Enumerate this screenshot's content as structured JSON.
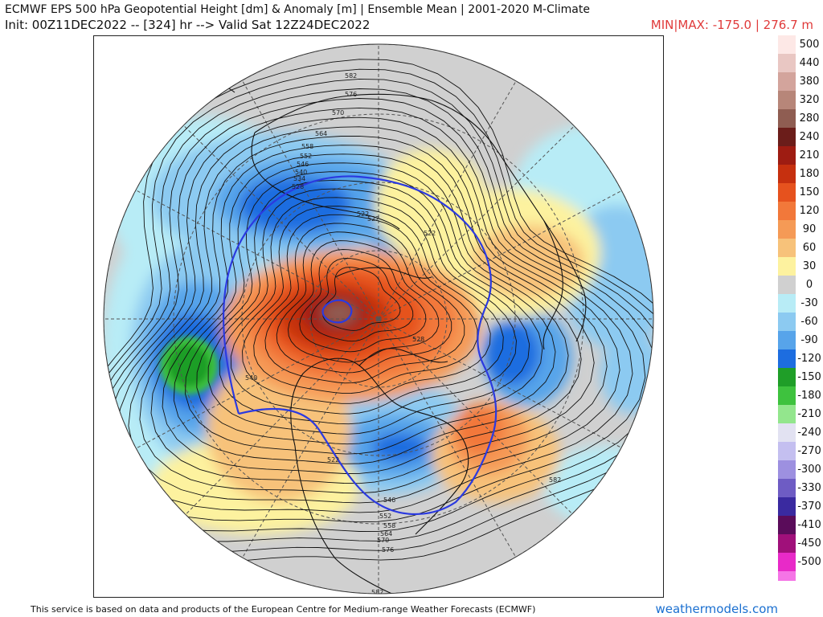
{
  "header": {
    "title_line1": "ECMWF EPS 500 hPa Geopotential Height [dm] & Anomaly [m] | Ensemble Mean | 2001-2020 M-Climate",
    "title_line2": "Init: 00Z11DEC2022 -- [324] hr --> Valid Sat 12Z24DEC2022",
    "minmax": "MIN|MAX: -175.0 | 276.7 m"
  },
  "map": {
    "contour_labels": [
      "582",
      "576",
      "570",
      "564",
      "558",
      "552",
      "546",
      "540",
      "534",
      "528",
      "522",
      "540",
      "528",
      "522",
      "522",
      "522",
      "546",
      "552",
      "558",
      "564",
      "570",
      "576",
      "582",
      "582"
    ]
  },
  "legend": {
    "entries": [
      {
        "label": "500",
        "color": "#fde8e6"
      },
      {
        "label": "440",
        "color": "#e9c7c3"
      },
      {
        "label": "380",
        "color": "#d3a49c"
      },
      {
        "label": "320",
        "color": "#b78679"
      },
      {
        "label": "280",
        "color": "#8f5d52"
      },
      {
        "label": "240",
        "color": "#6b1d1a"
      },
      {
        "label": "210",
        "color": "#9e1c12"
      },
      {
        "label": "180",
        "color": "#c6300f"
      },
      {
        "label": "150",
        "color": "#e6521e"
      },
      {
        "label": "120",
        "color": "#f2783a"
      },
      {
        "label": "90",
        "color": "#f59a56"
      },
      {
        "label": "60",
        "color": "#f7c27a"
      },
      {
        "label": "30",
        "color": "#fdf29f"
      },
      {
        "label": "0",
        "color": "#d0d0d0"
      },
      {
        "label": "-30",
        "color": "#b8ecf6"
      },
      {
        "label": "-60",
        "color": "#8ccaf1"
      },
      {
        "label": "-90",
        "color": "#57a4ea"
      },
      {
        "label": "-120",
        "color": "#1d6de0"
      },
      {
        "label": "-150",
        "color": "#1f9e28"
      },
      {
        "label": "-180",
        "color": "#3ec23e"
      },
      {
        "label": "-210",
        "color": "#93e68d"
      },
      {
        "label": "-240",
        "color": "#e2e2f2"
      },
      {
        "label": "-270",
        "color": "#c4bff0"
      },
      {
        "label": "-300",
        "color": "#9d90e0"
      },
      {
        "label": "-330",
        "color": "#6e5cc4"
      },
      {
        "label": "-370",
        "color": "#3a2aa0"
      },
      {
        "label": "-410",
        "color": "#5a0c5a"
      },
      {
        "label": "-450",
        "color": "#a0107a"
      },
      {
        "label": "-500",
        "color": "#e82ac8"
      }
    ],
    "bottom_color": "#f575e6"
  },
  "footer": {
    "attribution": "This service is based on data and products of the European Centre for Medium-range Weather Forecasts (ECMWF)",
    "site": "weathermodels.com"
  }
}
